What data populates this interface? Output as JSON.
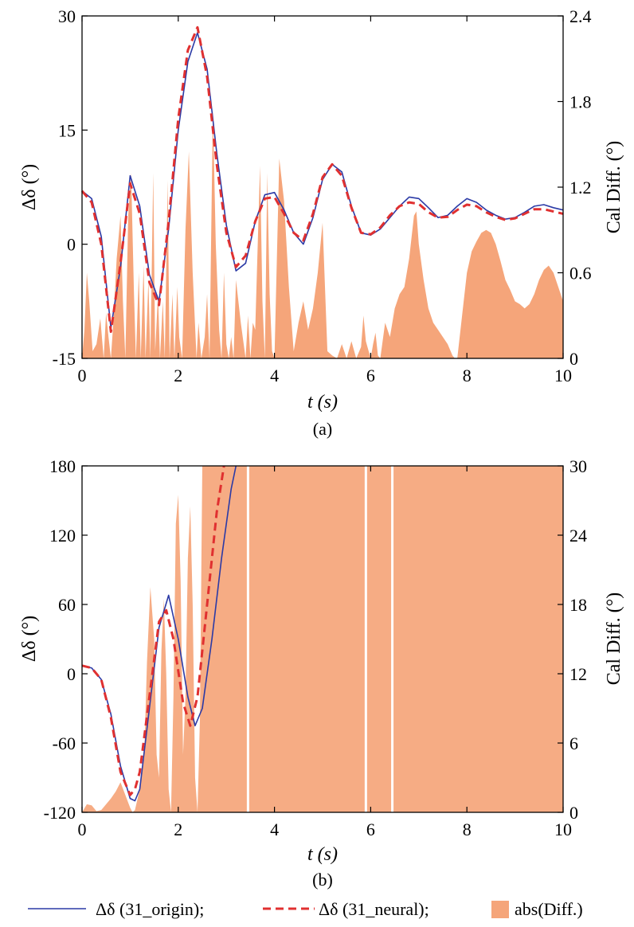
{
  "colors": {
    "origin": "#2b3aa6",
    "neural": "#e03030",
    "diff": "#f5a57a",
    "diff_light": "#f8c8a8"
  },
  "legend": {
    "origin_label": "Δδ (31_origin);",
    "neural_label": "Δδ (31_neural);",
    "diff_label": "abs(Diff.)"
  },
  "chart_data": [
    {
      "type": "line",
      "panel_label": "(a)",
      "xlabel": "t (s)",
      "ylabel_left": "Δδ (°)",
      "ylabel_right": "Cal Diff. (°)",
      "xlim": [
        0,
        10
      ],
      "ylim_left": [
        -15,
        30
      ],
      "ylim_right": [
        0,
        2.4
      ],
      "xticks": [
        "0",
        "2",
        "4",
        "6",
        "8",
        "10"
      ],
      "yticks_left": [
        "-15",
        "0",
        "15",
        "30"
      ],
      "yticks_right": [
        "0",
        "0.6",
        "1.2",
        "1.8",
        "2.4"
      ],
      "series": [
        {
          "name": "Δδ (31_origin)",
          "style": "solid",
          "x": [
            0,
            0.2,
            0.4,
            0.6,
            0.8,
            1.0,
            1.2,
            1.4,
            1.6,
            1.8,
            2.0,
            2.2,
            2.4,
            2.6,
            2.8,
            3.0,
            3.2,
            3.4,
            3.6,
            3.8,
            4.0,
            4.2,
            4.4,
            4.6,
            4.8,
            5.0,
            5.2,
            5.4,
            5.6,
            5.8,
            6.0,
            6.2,
            6.4,
            6.6,
            6.8,
            7.0,
            7.2,
            7.4,
            7.6,
            7.8,
            8.0,
            8.2,
            8.4,
            8.6,
            8.8,
            9.0,
            9.2,
            9.4,
            9.6,
            9.8,
            10.0
          ],
          "values": [
            7.0,
            6.0,
            1.0,
            -11.0,
            -3.0,
            9.0,
            5.0,
            -4.0,
            -7.5,
            2.0,
            15.0,
            24.0,
            27.8,
            23.0,
            12.0,
            2.5,
            -3.5,
            -2.5,
            3.0,
            6.5,
            6.8,
            4.5,
            1.5,
            0.0,
            3.5,
            8.5,
            10.5,
            9.5,
            5.0,
            1.5,
            1.2,
            2.0,
            3.5,
            5.0,
            6.2,
            6.0,
            4.8,
            3.5,
            3.8,
            5.0,
            6.0,
            5.5,
            4.5,
            3.8,
            3.3,
            3.5,
            4.2,
            5.0,
            5.2,
            4.8,
            4.5
          ]
        },
        {
          "name": "Δδ (31_neural)",
          "style": "dashed",
          "x": [
            0,
            0.2,
            0.4,
            0.6,
            0.8,
            1.0,
            1.2,
            1.4,
            1.6,
            1.8,
            2.0,
            2.2,
            2.4,
            2.6,
            2.8,
            3.0,
            3.2,
            3.4,
            3.6,
            3.8,
            4.0,
            4.2,
            4.4,
            4.6,
            4.8,
            5.0,
            5.2,
            5.4,
            5.6,
            5.8,
            6.0,
            6.2,
            6.4,
            6.6,
            6.8,
            7.0,
            7.2,
            7.4,
            7.6,
            7.8,
            8.0,
            8.2,
            8.4,
            8.6,
            8.8,
            9.0,
            9.2,
            9.4,
            9.6,
            9.8,
            10.0
          ],
          "values": [
            7.0,
            5.5,
            0.0,
            -11.5,
            -2.5,
            8.0,
            4.0,
            -5.0,
            -8.0,
            3.0,
            16.5,
            25.5,
            28.5,
            22.0,
            10.5,
            1.5,
            -3.0,
            -1.5,
            3.0,
            6.0,
            6.2,
            4.0,
            1.5,
            0.5,
            4.0,
            8.8,
            10.5,
            9.0,
            4.8,
            1.5,
            1.3,
            2.2,
            3.8,
            5.0,
            5.5,
            5.3,
            4.2,
            3.5,
            3.6,
            4.5,
            5.2,
            5.0,
            4.2,
            3.6,
            3.2,
            3.4,
            4.0,
            4.6,
            4.6,
            4.3,
            4.0
          ]
        },
        {
          "name": "abs(Diff.)",
          "style": "area",
          "axis": "right",
          "x": [
            0,
            0.05,
            0.1,
            0.15,
            0.22,
            0.3,
            0.38,
            0.45,
            0.5,
            0.55,
            0.6,
            0.65,
            0.72,
            0.8,
            0.85,
            0.9,
            0.96,
            1.02,
            1.08,
            1.12,
            1.18,
            1.22,
            1.28,
            1.32,
            1.38,
            1.42,
            1.48,
            1.52,
            1.58,
            1.62,
            1.68,
            1.72,
            1.78,
            1.82,
            1.88,
            1.92,
            1.98,
            2.02,
            2.08,
            2.15,
            2.22,
            2.3,
            2.38,
            2.42,
            2.48,
            2.55,
            2.6,
            2.65,
            2.72,
            2.78,
            2.85,
            2.9,
            2.95,
            3.0,
            3.05,
            3.1,
            3.15,
            3.2,
            3.3,
            3.4,
            3.45,
            3.5,
            3.55,
            3.6,
            3.7,
            3.75,
            3.8,
            3.85,
            3.9,
            3.95,
            4.0,
            4.1,
            4.2,
            4.3,
            4.4,
            4.5,
            4.6,
            4.7,
            4.8,
            4.9,
            5.0,
            5.05,
            5.1,
            5.2,
            5.3,
            5.4,
            5.45,
            5.5,
            5.6,
            5.7,
            5.8,
            5.85,
            5.9,
            6.0,
            6.05,
            6.1,
            6.15,
            6.2,
            6.3,
            6.4,
            6.5,
            6.6,
            6.7,
            6.8,
            6.9,
            6.95,
            7.0,
            7.1,
            7.2,
            7.3,
            7.4,
            7.5,
            7.6,
            7.7,
            7.75,
            7.8,
            7.9,
            8.0,
            8.1,
            8.2,
            8.3,
            8.4,
            8.5,
            8.6,
            8.7,
            8.8,
            8.9,
            9.0,
            9.1,
            9.2,
            9.3,
            9.4,
            9.5,
            9.6,
            9.7,
            9.8,
            9.9,
            10.0
          ],
          "values": [
            0.0,
            0.2,
            0.6,
            0.4,
            0.05,
            0.1,
            0.28,
            0.0,
            0.32,
            0.15,
            0.0,
            0.25,
            0.7,
            1.0,
            0.4,
            0.0,
            1.0,
            1.3,
            0.45,
            0.0,
            0.6,
            0.0,
            0.65,
            0.0,
            0.55,
            0.0,
            1.3,
            0.05,
            0.45,
            0.0,
            0.4,
            0.0,
            1.25,
            0.0,
            0.45,
            0.0,
            0.5,
            0.15,
            0.0,
            0.9,
            1.45,
            0.6,
            0.0,
            0.25,
            0.0,
            0.15,
            0.45,
            0.0,
            1.75,
            0.8,
            0.2,
            0.0,
            0.6,
            0.1,
            0.0,
            0.15,
            0.0,
            0.55,
            0.25,
            0.0,
            0.3,
            0.0,
            0.25,
            0.2,
            1.35,
            0.4,
            0.0,
            1.3,
            0.45,
            0.05,
            0.0,
            1.4,
            1.1,
            0.5,
            0.05,
            0.25,
            0.4,
            0.2,
            0.35,
            0.6,
            0.95,
            0.5,
            0.05,
            0.02,
            0.0,
            0.1,
            0.05,
            0.0,
            0.12,
            0.0,
            0.08,
            0.3,
            0.12,
            0.0,
            0.1,
            0.18,
            0.02,
            0.0,
            0.25,
            0.15,
            0.35,
            0.45,
            0.5,
            0.7,
            1.0,
            1.03,
            0.8,
            0.55,
            0.35,
            0.25,
            0.2,
            0.15,
            0.1,
            0.02,
            0.0,
            0.0,
            0.3,
            0.6,
            0.75,
            0.82,
            0.88,
            0.9,
            0.88,
            0.8,
            0.68,
            0.55,
            0.48,
            0.4,
            0.38,
            0.35,
            0.38,
            0.45,
            0.55,
            0.62,
            0.65,
            0.6,
            0.5,
            0.4
          ]
        }
      ]
    },
    {
      "type": "line",
      "panel_label": "(b)",
      "xlabel": "t (s)",
      "ylabel_left": "Δδ (°)",
      "ylabel_right": "Cal Diff. (°)",
      "xlim": [
        0,
        10
      ],
      "ylim_left": [
        -120,
        180
      ],
      "ylim_right": [
        0,
        30
      ],
      "xticks": [
        "0",
        "2",
        "4",
        "6",
        "8",
        "10"
      ],
      "yticks_left": [
        "-120",
        "-60",
        "0",
        "60",
        "120",
        "180"
      ],
      "yticks_right": [
        "0",
        "6",
        "12",
        "18",
        "24",
        "30"
      ],
      "series": [
        {
          "name": "Δδ (31_origin)",
          "style": "solid",
          "x": [
            0,
            0.2,
            0.4,
            0.6,
            0.8,
            1.0,
            1.1,
            1.2,
            1.4,
            1.6,
            1.8,
            2.0,
            2.2,
            2.35,
            2.5,
            2.7,
            2.9,
            3.1,
            3.2
          ],
          "values": [
            7.0,
            5.0,
            -5.0,
            -35.0,
            -80.0,
            -108.0,
            -110.0,
            -100.0,
            -30.0,
            40.0,
            68.0,
            30.0,
            -20.0,
            -45.0,
            -30.0,
            30.0,
            100.0,
            160.0,
            180.0
          ]
        },
        {
          "name": "Δδ (31_neural)",
          "style": "dashed",
          "x": [
            0,
            0.2,
            0.4,
            0.6,
            0.8,
            1.0,
            1.1,
            1.2,
            1.4,
            1.6,
            1.75,
            1.9,
            2.1,
            2.25,
            2.4,
            2.6,
            2.8,
            2.95
          ],
          "values": [
            7.0,
            5.0,
            -5.0,
            -38.0,
            -85.0,
            -105.0,
            -100.0,
            -85.0,
            -20.0,
            45.0,
            55.0,
            30.0,
            -25.0,
            -45.0,
            -20.0,
            60.0,
            140.0,
            180.0
          ]
        },
        {
          "name": "abs(Diff.)",
          "style": "area",
          "axis": "right",
          "x": [
            0,
            0.1,
            0.2,
            0.3,
            0.4,
            0.5,
            0.6,
            0.7,
            0.8,
            0.9,
            1.0,
            1.05,
            1.1,
            1.2,
            1.3,
            1.35,
            1.42,
            1.5,
            1.55,
            1.6,
            1.65,
            1.7,
            1.75,
            1.8,
            1.85,
            1.9,
            1.95,
            2.0,
            2.05,
            2.1,
            2.15,
            2.2,
            2.25,
            2.3,
            2.35,
            2.4,
            2.45,
            2.5
          ],
          "values": [
            0.0,
            0.7,
            0.6,
            0.1,
            0.2,
            0.7,
            1.2,
            1.8,
            2.6,
            1.5,
            0.4,
            0.0,
            0.2,
            2.0,
            6.0,
            13.0,
            19.5,
            15.0,
            5.0,
            3.0,
            14.0,
            18.5,
            12.0,
            2.0,
            0.0,
            10.0,
            25.0,
            27.5,
            20.0,
            5.0,
            10.0,
            22.0,
            26.5,
            18.0,
            3.0,
            0.0,
            8.0,
            30.0
          ],
          "saturated_after_x": 2.5,
          "gaps_x": [
            3.45,
            5.9,
            6.45
          ]
        }
      ]
    }
  ]
}
